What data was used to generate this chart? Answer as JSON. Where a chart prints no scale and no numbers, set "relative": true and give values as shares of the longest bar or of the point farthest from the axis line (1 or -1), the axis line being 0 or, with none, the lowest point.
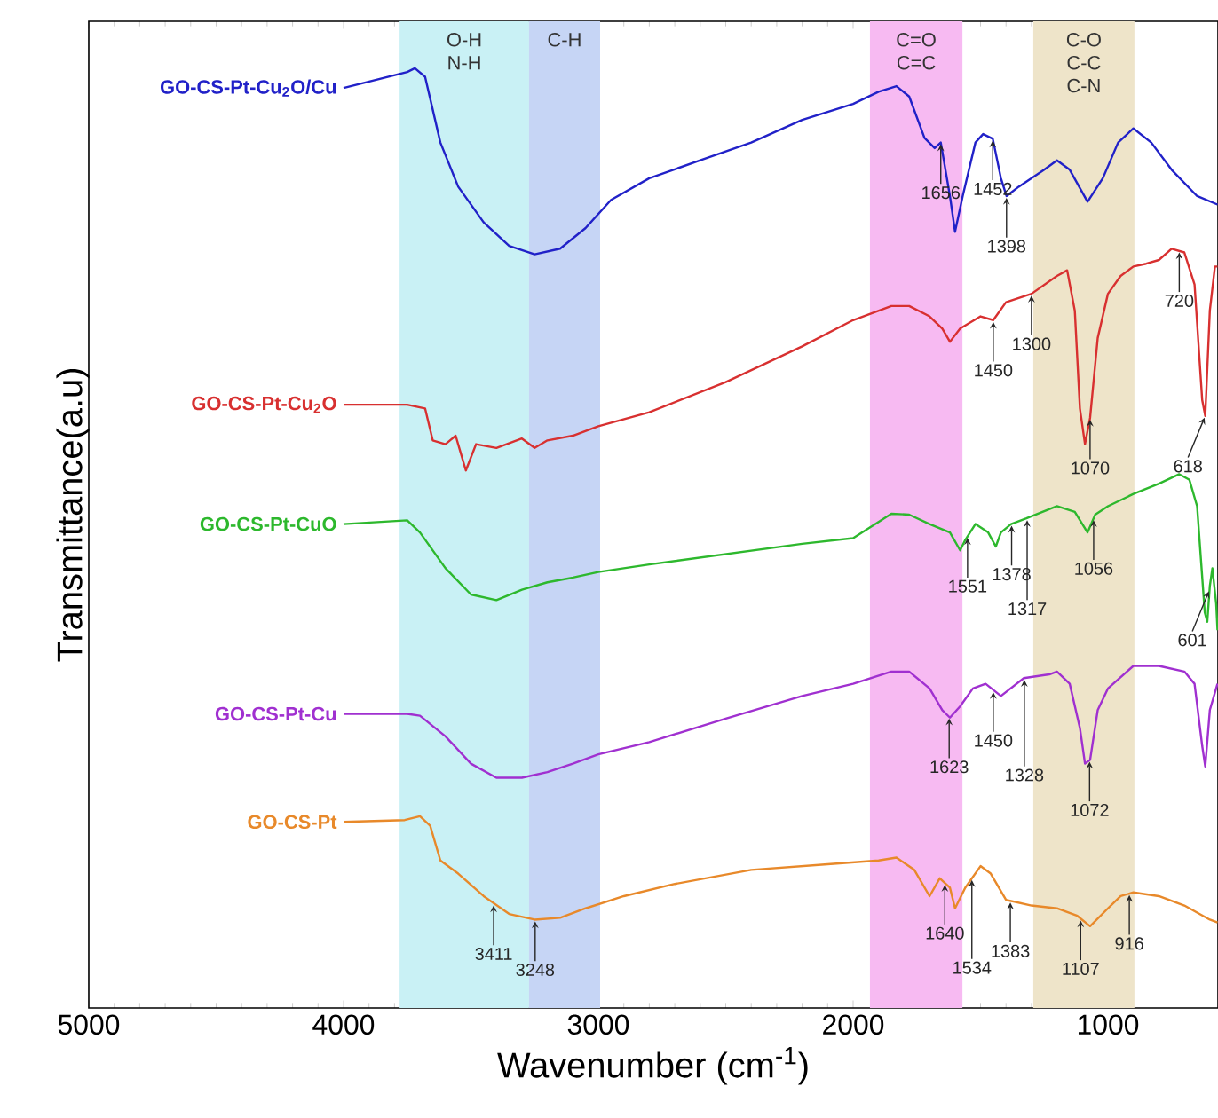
{
  "chart_data": {
    "type": "line",
    "relative": true,
    "xlabel": "Wavenumber (cm$^{-1}$)",
    "ylabel": "Transmittance(a.u)",
    "xlim": [
      5000,
      568
    ],
    "xticks": [
      5000,
      4000,
      3000,
      2000,
      1000
    ],
    "bands": [
      {
        "axis": "x",
        "from": 3780,
        "to": 3272,
        "label": "O-H N-H",
        "color": "#c9f1f5"
      },
      {
        "axis": "x",
        "from": 3272,
        "to": 2993,
        "label": "C-H",
        "color": "#c6d5f5"
      },
      {
        "axis": "x",
        "from": 1934,
        "to": 1571,
        "label": "C=O C=C",
        "color": "#f7baf2"
      },
      {
        "axis": "x",
        "from": 1293,
        "to": 896,
        "label": "C-O C-C C-N",
        "color": "#eee4c9"
      }
    ],
    "series": [
      {
        "name": "GO-CS-Pt-Cu$_{2}$O/Cu",
        "color": "#2121c8",
        "x": [
          4000,
          3750,
          3720,
          3680,
          3620,
          3550,
          3450,
          3350,
          3250,
          3150,
          3050,
          2950,
          2800,
          2600,
          2400,
          2200,
          2000,
          1900,
          1830,
          1780,
          1720,
          1680,
          1656,
          1620,
          1600,
          1570,
          1520,
          1490,
          1452,
          1420,
          1398,
          1350,
          1250,
          1200,
          1150,
          1080,
          1020,
          960,
          900,
          830,
          750,
          650,
          570
        ],
        "values": [
          0.979,
          0.996,
          1.0,
          0.991,
          0.921,
          0.874,
          0.836,
          0.811,
          0.802,
          0.808,
          0.83,
          0.86,
          0.883,
          0.902,
          0.921,
          0.945,
          0.962,
          0.975,
          0.981,
          0.97,
          0.926,
          0.915,
          0.921,
          0.864,
          0.826,
          0.864,
          0.921,
          0.93,
          0.925,
          0.883,
          0.864,
          0.874,
          0.892,
          0.902,
          0.892,
          0.858,
          0.883,
          0.921,
          0.936,
          0.921,
          0.892,
          0.864,
          0.855
        ]
      },
      {
        "name": "GO-CS-Pt-Cu$_{2}$O",
        "color": "#d83030",
        "x": [
          4000,
          3750,
          3680,
          3650,
          3600,
          3560,
          3520,
          3480,
          3400,
          3300,
          3250,
          3200,
          3100,
          3000,
          2800,
          2500,
          2200,
          2000,
          1850,
          1780,
          1700,
          1650,
          1620,
          1580,
          1500,
          1450,
          1400,
          1300,
          1200,
          1160,
          1130,
          1110,
          1090,
          1070,
          1040,
          1000,
          950,
          900,
          850,
          800,
          750,
          700,
          660,
          630,
          618,
          600,
          580,
          570
        ],
        "values": [
          0.642,
          0.642,
          0.638,
          0.604,
          0.6,
          0.609,
          0.572,
          0.6,
          0.596,
          0.606,
          0.596,
          0.604,
          0.609,
          0.619,
          0.634,
          0.666,
          0.704,
          0.732,
          0.747,
          0.747,
          0.736,
          0.723,
          0.709,
          0.723,
          0.736,
          0.732,
          0.751,
          0.76,
          0.779,
          0.785,
          0.742,
          0.638,
          0.6,
          0.628,
          0.713,
          0.76,
          0.779,
          0.789,
          0.792,
          0.796,
          0.808,
          0.804,
          0.77,
          0.647,
          0.63,
          0.742,
          0.789,
          0.789
        ]
      },
      {
        "name": "GO-CS-Pt-CuO",
        "color": "#2db82d",
        "x": [
          4000,
          3750,
          3700,
          3600,
          3500,
          3400,
          3300,
          3200,
          3100,
          3000,
          2800,
          2500,
          2200,
          2000,
          1850,
          1780,
          1700,
          1620,
          1580,
          1560,
          1520,
          1470,
          1440,
          1420,
          1380,
          1320,
          1200,
          1130,
          1080,
          1050,
          1000,
          900,
          800,
          720,
          680,
          650,
          620,
          610,
          600,
          590,
          575,
          570
        ],
        "values": [
          0.515,
          0.519,
          0.506,
          0.468,
          0.44,
          0.434,
          0.445,
          0.453,
          0.458,
          0.464,
          0.472,
          0.483,
          0.494,
          0.5,
          0.526,
          0.525,
          0.515,
          0.506,
          0.487,
          0.498,
          0.515,
          0.506,
          0.491,
          0.506,
          0.515,
          0.521,
          0.534,
          0.528,
          0.506,
          0.525,
          0.534,
          0.547,
          0.558,
          0.568,
          0.562,
          0.534,
          0.421,
          0.411,
          0.449,
          0.468,
          0.43,
          0.402
        ]
      },
      {
        "name": "GO-CS-Pt-Cu",
        "color": "#a030d0",
        "x": [
          4000,
          3750,
          3700,
          3600,
          3500,
          3400,
          3300,
          3200,
          3100,
          3000,
          2800,
          2500,
          2200,
          2000,
          1850,
          1780,
          1700,
          1650,
          1620,
          1580,
          1530,
          1480,
          1420,
          1330,
          1230,
          1200,
          1150,
          1110,
          1090,
          1070,
          1040,
          1000,
          900,
          800,
          700,
          660,
          630,
          618,
          600,
          570
        ],
        "values": [
          0.313,
          0.313,
          0.311,
          0.289,
          0.26,
          0.245,
          0.245,
          0.251,
          0.26,
          0.27,
          0.283,
          0.308,
          0.332,
          0.345,
          0.358,
          0.358,
          0.34,
          0.317,
          0.309,
          0.321,
          0.34,
          0.345,
          0.332,
          0.351,
          0.355,
          0.358,
          0.345,
          0.298,
          0.26,
          0.264,
          0.317,
          0.34,
          0.364,
          0.364,
          0.358,
          0.345,
          0.279,
          0.257,
          0.317,
          0.345
        ]
      },
      {
        "name": "GO-CS-Pt",
        "color": "#e8892a",
        "x": [
          4000,
          3760,
          3700,
          3660,
          3620,
          3550,
          3450,
          3350,
          3250,
          3150,
          3050,
          2900,
          2700,
          2400,
          2100,
          1900,
          1830,
          1760,
          1700,
          1660,
          1620,
          1600,
          1560,
          1500,
          1460,
          1400,
          1300,
          1200,
          1120,
          1070,
          1000,
          950,
          900,
          800,
          700,
          600,
          570
        ],
        "values": [
          0.198,
          0.2,
          0.204,
          0.194,
          0.157,
          0.143,
          0.119,
          0.1,
          0.094,
          0.096,
          0.106,
          0.119,
          0.132,
          0.147,
          0.153,
          0.157,
          0.16,
          0.147,
          0.119,
          0.138,
          0.128,
          0.106,
          0.128,
          0.151,
          0.143,
          0.115,
          0.109,
          0.106,
          0.098,
          0.087,
          0.106,
          0.119,
          0.123,
          0.119,
          0.109,
          0.094,
          0.091
        ]
      }
    ],
    "annotations": [
      {
        "text": "1656",
        "x": 1656,
        "y": 0.921
      },
      {
        "text": "1452",
        "x": 1452,
        "y": 0.925
      },
      {
        "text": "1398",
        "x": 1398,
        "y": 0.864
      },
      {
        "text": "1450",
        "x": 1450,
        "y": 0.732
      },
      {
        "text": "1300",
        "x": 1300,
        "y": 0.76
      },
      {
        "text": "1070",
        "x": 1070,
        "y": 0.628
      },
      {
        "text": "720",
        "x": 720,
        "y": 0.806
      },
      {
        "text": "618",
        "x": 618,
        "y": 0.63
      },
      {
        "text": "1551",
        "x": 1551,
        "y": 0.502
      },
      {
        "text": "1378",
        "x": 1378,
        "y": 0.515
      },
      {
        "text": "1317",
        "x": 1317,
        "y": 0.521
      },
      {
        "text": "1056",
        "x": 1056,
        "y": 0.521
      },
      {
        "text": "601",
        "x": 601,
        "y": 0.445
      },
      {
        "text": "1623",
        "x": 1623,
        "y": 0.31
      },
      {
        "text": "1450",
        "x": 1450,
        "y": 0.338
      },
      {
        "text": "1328",
        "x": 1328,
        "y": 0.351
      },
      {
        "text": "1072",
        "x": 1072,
        "y": 0.264
      },
      {
        "text": "3411",
        "x": 3411,
        "y": 0.111
      },
      {
        "text": "3248",
        "x": 3248,
        "y": 0.094
      },
      {
        "text": "1640",
        "x": 1640,
        "y": 0.133
      },
      {
        "text": "1534",
        "x": 1534,
        "y": 0.138
      },
      {
        "text": "1383",
        "x": 1383,
        "y": 0.114
      },
      {
        "text": "1107",
        "x": 1107,
        "y": 0.095
      },
      {
        "text": "916",
        "x": 916,
        "y": 0.122
      }
    ]
  }
}
